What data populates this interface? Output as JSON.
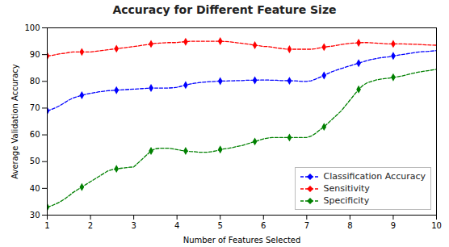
{
  "chart_data": {
    "type": "line",
    "title": "Accuracy for Different Feature Size",
    "xlabel": "Number of Features Selected",
    "ylabel": "Average Validation Accuracy",
    "xlim": [
      1,
      10
    ],
    "ylim": [
      30,
      100
    ],
    "xticks": [
      1,
      2,
      3,
      4,
      5,
      6,
      7,
      8,
      9,
      10
    ],
    "yticks": [
      30,
      40,
      50,
      60,
      70,
      80,
      90,
      100
    ],
    "grid": false,
    "legend": "lower right",
    "marker": "diamond",
    "line_style": "dashed",
    "x": [
      1.0,
      1.1,
      1.2,
      1.3,
      1.4,
      1.5,
      1.6,
      1.7,
      1.8,
      1.9,
      2.0,
      2.1,
      2.2,
      2.3,
      2.4,
      2.5,
      2.6,
      2.7,
      2.8,
      2.9,
      3.0,
      3.1,
      3.2,
      3.3,
      3.4,
      3.5,
      3.6,
      3.7,
      3.8,
      3.9,
      4.0,
      4.1,
      4.2,
      4.3,
      4.4,
      4.5,
      4.6,
      4.7,
      4.8,
      4.9,
      5.0,
      5.1,
      5.2,
      5.3,
      5.4,
      5.5,
      5.6,
      5.7,
      5.8,
      5.9,
      6.0,
      6.1,
      6.2,
      6.3,
      6.4,
      6.5,
      6.6,
      6.7,
      6.8,
      6.9,
      7.0,
      7.1,
      7.2,
      7.3,
      7.4,
      7.5,
      7.6,
      7.7,
      7.8,
      7.9,
      8.0,
      8.1,
      8.2,
      8.3,
      8.4,
      8.5,
      8.6,
      8.7,
      8.8,
      8.9,
      9.0,
      9.2,
      9.4,
      9.6,
      9.8,
      10.0
    ],
    "series": [
      {
        "name": "Classification Accuracy",
        "color": "#0000ff",
        "values": [
          69.0,
          69.5,
          70.2,
          71.0,
          72.0,
          73.0,
          73.8,
          74.3,
          74.8,
          75.2,
          75.5,
          75.8,
          76.1,
          76.3,
          76.5,
          76.6,
          76.7,
          76.8,
          76.9,
          77.0,
          77.1,
          77.2,
          77.3,
          77.4,
          77.5,
          77.5,
          77.5,
          77.5,
          77.5,
          77.6,
          77.8,
          78.2,
          78.6,
          79.0,
          79.3,
          79.5,
          79.7,
          79.8,
          79.9,
          80.0,
          80.1,
          80.1,
          80.2,
          80.2,
          80.3,
          80.3,
          80.4,
          80.4,
          80.4,
          80.5,
          80.5,
          80.5,
          80.4,
          80.4,
          80.3,
          80.3,
          80.2,
          80.2,
          80.1,
          80.0,
          80.0,
          80.2,
          80.8,
          81.5,
          82.2,
          83.0,
          83.7,
          84.3,
          84.8,
          85.3,
          85.8,
          86.3,
          86.8,
          87.3,
          87.8,
          88.2,
          88.5,
          88.8,
          89.0,
          89.2,
          89.5,
          90.0,
          90.5,
          91.0,
          91.2,
          91.5
        ]
      },
      {
        "name": "Sensitivity",
        "color": "#ff0000",
        "values": [
          89.5,
          89.7,
          90.0,
          90.3,
          90.5,
          90.8,
          91.0,
          91.0,
          91.0,
          91.0,
          91.0,
          91.2,
          91.4,
          91.6,
          91.8,
          92.0,
          92.2,
          92.4,
          92.6,
          92.8,
          93.0,
          93.2,
          93.5,
          93.7,
          94.0,
          94.2,
          94.3,
          94.4,
          94.5,
          94.5,
          94.5,
          94.7,
          94.8,
          95.0,
          95.0,
          95.0,
          95.0,
          95.0,
          95.0,
          95.0,
          95.0,
          94.9,
          94.8,
          94.6,
          94.4,
          94.2,
          94.0,
          93.8,
          93.5,
          93.3,
          93.0,
          93.0,
          92.8,
          92.5,
          92.3,
          92.1,
          92.0,
          92.0,
          92.0,
          92.0,
          92.0,
          92.0,
          92.2,
          92.5,
          92.8,
          93.0,
          93.2,
          93.5,
          93.8,
          94.0,
          94.2,
          94.3,
          94.4,
          94.5,
          94.5,
          94.4,
          94.3,
          94.2,
          94.1,
          94.0,
          94.0,
          94.0,
          93.9,
          93.8,
          93.6,
          93.5
        ]
      },
      {
        "name": "Specificity",
        "color": "#008000",
        "values": [
          33.0,
          33.5,
          34.2,
          35.0,
          36.0,
          37.2,
          38.5,
          39.5,
          40.5,
          41.5,
          42.5,
          43.5,
          44.5,
          45.5,
          46.5,
          47.0,
          47.3,
          47.5,
          47.7,
          47.9,
          48.0,
          49.5,
          51.0,
          52.5,
          54.0,
          54.8,
          55.0,
          55.0,
          55.0,
          54.8,
          54.5,
          54.2,
          54.0,
          53.8,
          53.7,
          53.5,
          53.5,
          53.5,
          53.7,
          54.0,
          54.5,
          54.8,
          55.0,
          55.3,
          55.7,
          56.0,
          56.5,
          57.0,
          57.5,
          58.0,
          58.5,
          58.8,
          59.0,
          59.0,
          59.0,
          59.0,
          59.0,
          59.0,
          59.0,
          59.0,
          59.0,
          59.5,
          60.5,
          61.8,
          63.0,
          64.5,
          66.0,
          67.5,
          69.0,
          71.0,
          73.0,
          75.0,
          77.0,
          78.5,
          79.5,
          80.0,
          80.5,
          80.8,
          81.0,
          81.2,
          81.5,
          82.0,
          82.8,
          83.5,
          84.0,
          84.5
        ]
      }
    ]
  }
}
